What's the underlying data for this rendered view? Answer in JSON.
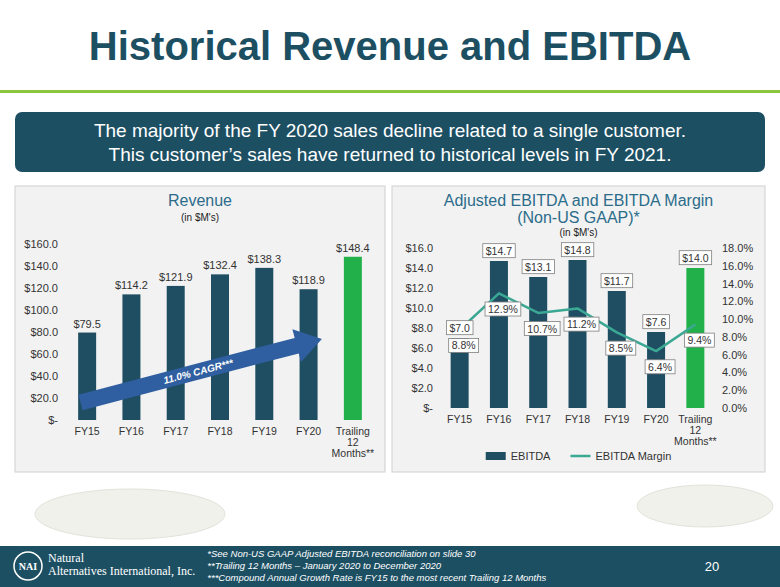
{
  "title": "Historical Revenue and EBITDA",
  "banner": [
    "The majority of the FY 2020 sales decline related to a single customer.",
    "This customer’s sales have returned to historical levels in FY 2021."
  ],
  "chart_data": [
    {
      "type": "bar",
      "title": "Revenue",
      "note": "(in $M's)",
      "categories": [
        "FY15",
        "FY16",
        "FY17",
        "FY18",
        "FY19",
        "FY20",
        "Trailing 12 Months**"
      ],
      "values": [
        79.5,
        114.2,
        121.9,
        132.4,
        138.3,
        118.9,
        148.4
      ],
      "value_labels": [
        "$79.5",
        "$114.2",
        "$121.9",
        "$132.4",
        "$138.3",
        "$118.9",
        "$148.4"
      ],
      "color": "#1f4e63",
      "colors": [
        "#1f4e63",
        "#1f4e63",
        "#1f4e63",
        "#1f4e63",
        "#1f4e63",
        "#1f4e63",
        "#22b04b"
      ],
      "ylim": [
        0,
        160
      ],
      "yticks": [
        {
          "value": 0,
          "label": "$-"
        },
        {
          "value": 20,
          "label": "$20.0"
        },
        {
          "value": 40,
          "label": "$40.0"
        },
        {
          "value": 60,
          "label": "$60.0"
        },
        {
          "value": 80,
          "label": "$80.0"
        },
        {
          "value": 100,
          "label": "$100.0"
        },
        {
          "value": 120,
          "label": "$120.0"
        },
        {
          "value": 140,
          "label": "$140.0"
        },
        {
          "value": 160,
          "label": "$160.0"
        }
      ],
      "grid": false,
      "data_labels": true,
      "annotation": "11.0% CAGR***"
    },
    {
      "type": "bar",
      "title": "Adjusted EBITDA and EBITDA Margin",
      "subtitle": "(Non-US GAAP)*",
      "note": "(in $M's)",
      "categories": [
        "FY15",
        "FY16",
        "FY17",
        "FY18",
        "FY19",
        "FY20",
        "Trailing 12 Months**"
      ],
      "series": [
        {
          "name": "EBITDA",
          "type": "bar",
          "color": "#1f4e63",
          "colors": [
            "#1f4e63",
            "#1f4e63",
            "#1f4e63",
            "#1f4e63",
            "#1f4e63",
            "#1f4e63",
            "#22b04b"
          ],
          "values": [
            7.0,
            14.7,
            13.1,
            14.8,
            11.7,
            7.6,
            14.0
          ],
          "value_labels": [
            "$7.0",
            "$14.7",
            "$13.1",
            "$14.8",
            "$11.7",
            "$7.6",
            "$14.0"
          ]
        },
        {
          "name": "EBITDA Margin",
          "type": "line",
          "axis": "y2",
          "color": "#3aa893",
          "values": [
            8.8,
            12.9,
            10.7,
            11.2,
            8.5,
            6.4,
            9.4
          ],
          "value_labels": [
            "8.8%",
            "12.9%",
            "10.7%",
            "11.2%",
            "8.5%",
            "6.4%",
            "9.4%"
          ]
        }
      ],
      "ylim": [
        0,
        16
      ],
      "yticks": [
        {
          "value": 0,
          "label": "$-"
        },
        {
          "value": 2,
          "label": "$2.0"
        },
        {
          "value": 4,
          "label": "$4.0"
        },
        {
          "value": 6,
          "label": "$6.0"
        },
        {
          "value": 8,
          "label": "$8.0"
        },
        {
          "value": 10,
          "label": "$10.0"
        },
        {
          "value": 12,
          "label": "$12.0"
        },
        {
          "value": 14,
          "label": "$14.0"
        },
        {
          "value": 16,
          "label": "$16.0"
        }
      ],
      "y2lim": [
        0,
        18
      ],
      "y2ticks": [
        {
          "value": 0,
          "label": "0.0%"
        },
        {
          "value": 2,
          "label": "2.0%"
        },
        {
          "value": 4,
          "label": "4.0%"
        },
        {
          "value": 6,
          "label": "6.0%"
        },
        {
          "value": 8,
          "label": "8.0%"
        },
        {
          "value": 10,
          "label": "10.0%"
        },
        {
          "value": 12,
          "label": "12.0%"
        },
        {
          "value": 14,
          "label": "14.0%"
        },
        {
          "value": 16,
          "label": "16.0%"
        },
        {
          "value": 18,
          "label": "18.0%"
        }
      ],
      "grid": false,
      "data_labels": true,
      "legend": "bottom"
    }
  ],
  "footer": {
    "logo": "NAI",
    "company": "Natural Alternatives International, Inc.",
    "footnotes": [
      "*See Non-US GAAP Adjusted EBITDA reconciliation on slide 30",
      "**Trailing 12 Months – January 2020 to December 2020",
      "***Compound Annual Growth Rate is FY15 to the most recent Trailing 12 Months"
    ],
    "page": "20"
  }
}
